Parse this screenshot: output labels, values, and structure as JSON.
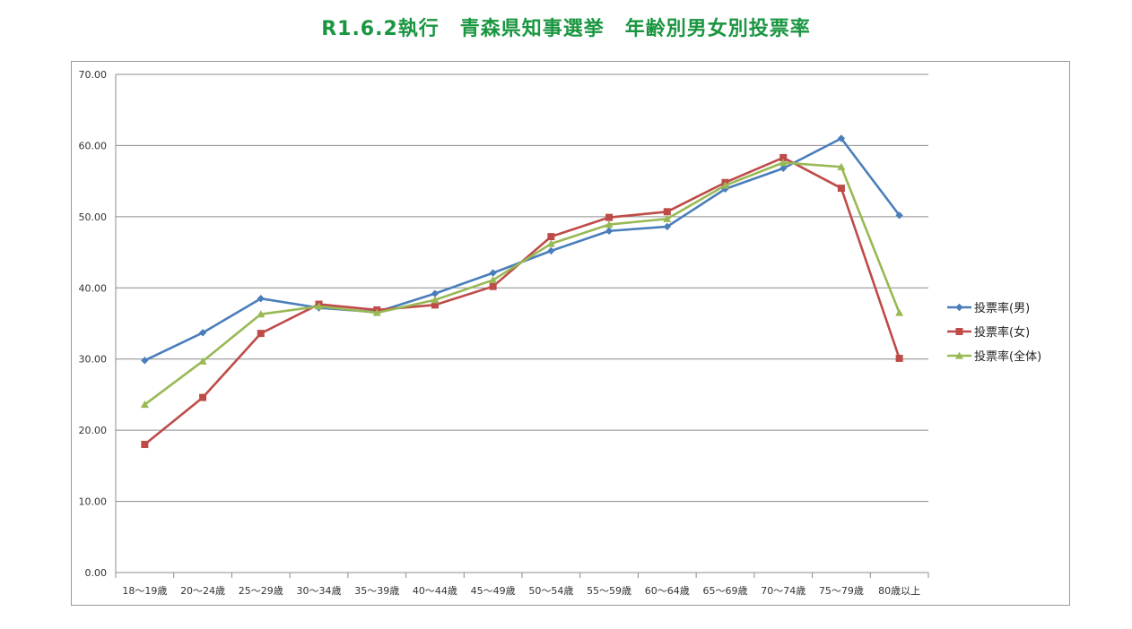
{
  "chart_data": {
    "type": "line",
    "title": "R1.6.2執行　青森県知事選挙　年齢別男女別投票率",
    "xlabel": "",
    "ylabel": "",
    "ylim": [
      0,
      70
    ],
    "yticks": [
      "0.00",
      "10.00",
      "20.00",
      "30.00",
      "40.00",
      "50.00",
      "60.00",
      "70.00"
    ],
    "categories": [
      "18～19歳",
      "20～24歳",
      "25～29歳",
      "30～34歳",
      "35～39歳",
      "40～44歳",
      "45～49歳",
      "50～54歳",
      "55～59歳",
      "60～64歳",
      "65～69歳",
      "70～74歳",
      "75～79歳",
      "80歳以上"
    ],
    "grid": "horizontal",
    "legend_position": "right",
    "series": [
      {
        "name": "投票率(男)",
        "color": "#4a7ebb",
        "marker": "diamond",
        "values": [
          29.8,
          33.7,
          38.5,
          37.2,
          36.6,
          39.2,
          42.1,
          45.2,
          48.0,
          48.6,
          53.9,
          56.8,
          61.0,
          50.2
        ]
      },
      {
        "name": "投票率(女)",
        "color": "#be4b48",
        "marker": "square",
        "values": [
          18.0,
          24.6,
          33.6,
          37.7,
          36.9,
          37.6,
          40.2,
          47.2,
          49.9,
          50.7,
          54.8,
          58.3,
          54.0,
          30.1
        ]
      },
      {
        "name": "投票率(全体)",
        "color": "#98b954",
        "marker": "triangle",
        "values": [
          23.6,
          29.7,
          36.3,
          37.4,
          36.5,
          38.3,
          41.1,
          46.2,
          48.9,
          49.7,
          54.4,
          57.6,
          57.0,
          36.5
        ]
      }
    ]
  }
}
